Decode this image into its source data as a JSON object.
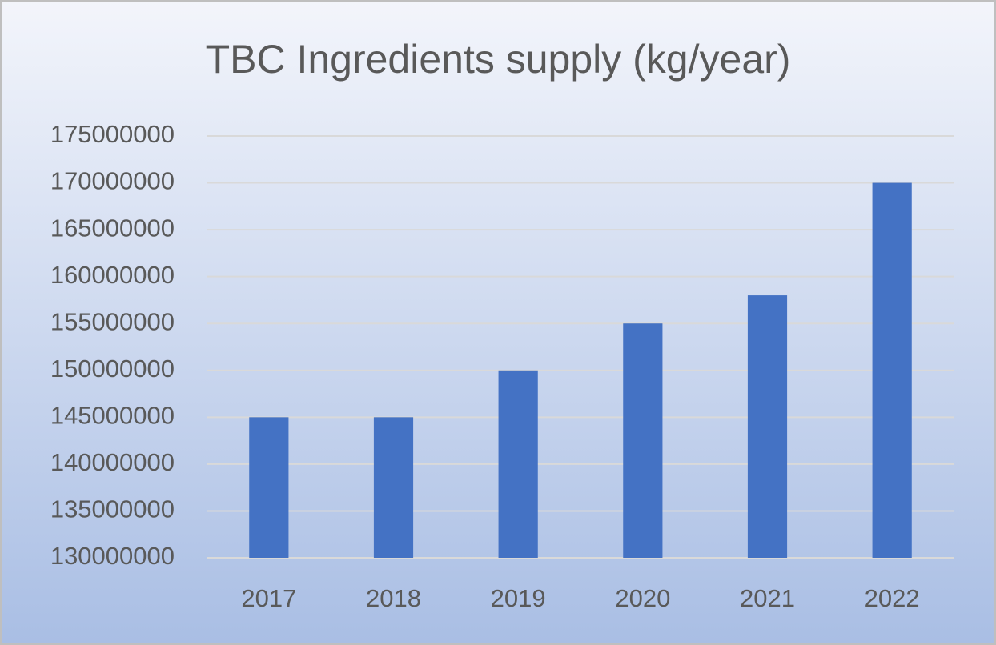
{
  "chart_data": {
    "type": "bar",
    "title": "TBC Ingredients supply (kg/year)",
    "categories": [
      "2017",
      "2018",
      "2019",
      "2020",
      "2021",
      "2022"
    ],
    "values": [
      145000000,
      145000000,
      150000000,
      155000000,
      158000000,
      170000000
    ],
    "color": "#4472c4",
    "ylim": [
      130000000,
      175000000
    ],
    "yticks": [
      130000000,
      135000000,
      140000000,
      145000000,
      150000000,
      155000000,
      160000000,
      165000000,
      170000000,
      175000000
    ],
    "grid": true
  }
}
